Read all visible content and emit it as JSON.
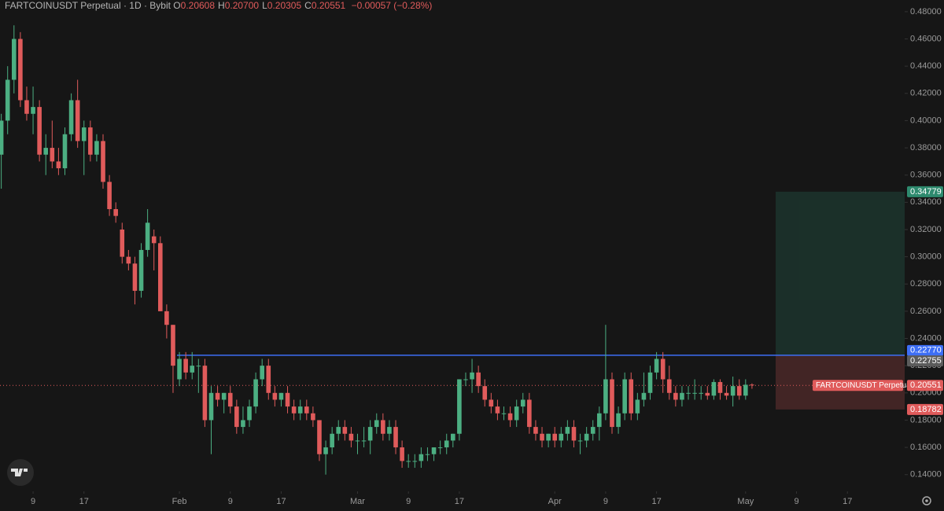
{
  "chart_data": {
    "type": "candlestick",
    "title": "FARTCOINUSDT Perpetual · 1D · Bybit",
    "ohlc_header": [
      {
        "label": "O",
        "value": "0.20608"
      },
      {
        "label": "H",
        "value": "0.20700"
      },
      {
        "label": "L",
        "value": "0.20305"
      },
      {
        "label": "C",
        "value": "0.20551"
      }
    ],
    "change": "−0.00057 (−0.28%)",
    "series_name": "FARTCOINUSDT Perpetual",
    "up_color": "#4caf82",
    "down_color": "#e05b5b",
    "open": [
      0.375,
      0.4,
      0.43,
      0.46,
      0.415,
      0.405,
      0.41,
      0.375,
      0.38,
      0.37,
      0.365,
      0.39,
      0.415,
      0.385,
      0.395,
      0.375,
      0.385,
      0.355,
      0.335,
      0.32,
      0.3,
      0.295,
      0.275,
      0.305,
      0.315,
      0.31,
      0.26,
      0.25,
      0.21,
      0.225,
      0.215,
      0.22,
      0.22,
      0.18,
      0.2,
      0.195,
      0.2,
      0.19,
      0.175,
      0.18,
      0.19,
      0.21,
      0.22,
      0.2,
      0.195,
      0.2,
      0.19,
      0.185,
      0.19,
      0.185,
      0.18,
      0.155,
      0.16,
      0.17,
      0.175,
      0.17,
      0.165,
      0.165,
      0.165,
      0.175,
      0.18,
      0.17,
      0.175,
      0.16,
      0.15,
      0.15,
      0.15,
      0.155,
      0.155,
      0.16,
      0.16,
      0.165,
      0.17,
      0.21,
      0.21,
      0.215,
      0.205,
      0.195,
      0.19,
      0.185,
      0.185,
      0.18,
      0.19,
      0.195,
      0.175,
      0.17,
      0.165,
      0.17,
      0.165,
      0.17,
      0.175,
      0.165,
      0.165,
      0.17,
      0.175,
      0.185,
      0.21,
      0.175,
      0.185,
      0.21,
      0.185,
      0.195,
      0.2,
      0.215,
      0.225,
      0.21,
      0.2,
      0.195,
      0.2,
      0.2,
      0.2,
      0.2,
      0.198,
      0.208,
      0.2,
      0.198,
      0.205,
      0.198,
      0.20608
    ],
    "high": [
      0.405,
      0.44,
      0.47,
      0.465,
      0.425,
      0.425,
      0.415,
      0.39,
      0.4,
      0.38,
      0.395,
      0.42,
      0.43,
      0.4,
      0.4,
      0.39,
      0.39,
      0.36,
      0.34,
      0.325,
      0.305,
      0.3,
      0.31,
      0.335,
      0.32,
      0.315,
      0.265,
      0.25,
      0.23,
      0.23,
      0.23,
      0.225,
      0.225,
      0.205,
      0.205,
      0.2,
      0.205,
      0.195,
      0.19,
      0.195,
      0.215,
      0.225,
      0.225,
      0.205,
      0.2,
      0.205,
      0.195,
      0.195,
      0.195,
      0.19,
      0.18,
      0.165,
      0.175,
      0.18,
      0.18,
      0.175,
      0.17,
      0.175,
      0.18,
      0.185,
      0.185,
      0.18,
      0.18,
      0.165,
      0.155,
      0.155,
      0.16,
      0.16,
      0.16,
      0.165,
      0.17,
      0.17,
      0.21,
      0.215,
      0.225,
      0.22,
      0.21,
      0.2,
      0.195,
      0.19,
      0.19,
      0.195,
      0.2,
      0.2,
      0.18,
      0.175,
      0.17,
      0.175,
      0.175,
      0.18,
      0.18,
      0.17,
      0.175,
      0.18,
      0.19,
      0.25,
      0.215,
      0.19,
      0.215,
      0.215,
      0.2,
      0.215,
      0.22,
      0.23,
      0.23,
      0.22,
      0.205,
      0.205,
      0.205,
      0.21,
      0.205,
      0.205,
      0.21,
      0.21,
      0.205,
      0.212,
      0.21,
      0.21,
      0.207
    ],
    "low": [
      0.35,
      0.39,
      0.42,
      0.41,
      0.4,
      0.39,
      0.37,
      0.36,
      0.365,
      0.36,
      0.36,
      0.385,
      0.38,
      0.36,
      0.37,
      0.37,
      0.35,
      0.33,
      0.325,
      0.295,
      0.29,
      0.265,
      0.27,
      0.3,
      0.29,
      0.26,
      0.24,
      0.2,
      0.205,
      0.21,
      0.21,
      0.2,
      0.175,
      0.155,
      0.19,
      0.185,
      0.185,
      0.17,
      0.17,
      0.175,
      0.185,
      0.205,
      0.195,
      0.19,
      0.19,
      0.185,
      0.18,
      0.18,
      0.18,
      0.175,
      0.15,
      0.14,
      0.155,
      0.165,
      0.165,
      0.16,
      0.155,
      0.16,
      0.155,
      0.17,
      0.165,
      0.165,
      0.155,
      0.145,
      0.145,
      0.145,
      0.145,
      0.15,
      0.15,
      0.155,
      0.155,
      0.16,
      0.165,
      0.205,
      0.2,
      0.2,
      0.19,
      0.185,
      0.18,
      0.18,
      0.175,
      0.175,
      0.185,
      0.17,
      0.165,
      0.16,
      0.16,
      0.16,
      0.16,
      0.165,
      0.16,
      0.155,
      0.16,
      0.165,
      0.165,
      0.18,
      0.17,
      0.17,
      0.18,
      0.18,
      0.18,
      0.19,
      0.195,
      0.21,
      0.2,
      0.195,
      0.19,
      0.19,
      0.195,
      0.195,
      0.195,
      0.195,
      0.195,
      0.195,
      0.195,
      0.19,
      0.195,
      0.195,
      0.20305
    ],
    "close": [
      0.4,
      0.43,
      0.46,
      0.415,
      0.405,
      0.41,
      0.375,
      0.38,
      0.37,
      0.365,
      0.39,
      0.415,
      0.385,
      0.395,
      0.375,
      0.385,
      0.355,
      0.335,
      0.33,
      0.3,
      0.295,
      0.275,
      0.305,
      0.325,
      0.31,
      0.26,
      0.25,
      0.22,
      0.225,
      0.215,
      0.22,
      0.22,
      0.18,
      0.2,
      0.195,
      0.2,
      0.19,
      0.175,
      0.18,
      0.19,
      0.21,
      0.22,
      0.2,
      0.195,
      0.2,
      0.19,
      0.185,
      0.19,
      0.185,
      0.18,
      0.155,
      0.16,
      0.17,
      0.175,
      0.17,
      0.165,
      0.165,
      0.165,
      0.175,
      0.18,
      0.17,
      0.175,
      0.16,
      0.15,
      0.15,
      0.15,
      0.155,
      0.155,
      0.16,
      0.16,
      0.165,
      0.17,
      0.21,
      0.21,
      0.215,
      0.205,
      0.195,
      0.19,
      0.185,
      0.185,
      0.18,
      0.19,
      0.195,
      0.175,
      0.17,
      0.165,
      0.17,
      0.165,
      0.17,
      0.175,
      0.165,
      0.165,
      0.17,
      0.175,
      0.185,
      0.21,
      0.175,
      0.185,
      0.21,
      0.185,
      0.195,
      0.2,
      0.215,
      0.225,
      0.21,
      0.2,
      0.195,
      0.2,
      0.2,
      0.2,
      0.2,
      0.198,
      0.208,
      0.2,
      0.198,
      0.205,
      0.198,
      0.206,
      0.20551
    ],
    "xlim": [
      -0.2,
      142
    ],
    "xticks": [
      {
        "value": 5,
        "label": "9"
      },
      {
        "value": 13,
        "label": "17"
      },
      {
        "value": 28,
        "label": "Feb"
      },
      {
        "value": 36,
        "label": "9"
      },
      {
        "value": 44,
        "label": "17"
      },
      {
        "value": 56,
        "label": "Mar"
      },
      {
        "value": 64,
        "label": "9"
      },
      {
        "value": 72,
        "label": "17"
      },
      {
        "value": 87,
        "label": "Apr"
      },
      {
        "value": 95,
        "label": "9"
      },
      {
        "value": 103,
        "label": "17"
      },
      {
        "value": 117,
        "label": "May"
      },
      {
        "value": 125,
        "label": "9"
      },
      {
        "value": 133,
        "label": "17"
      }
    ],
    "ylim": [
      0.1277,
      0.4886
    ],
    "yticks": [
      {
        "value": 0.14,
        "label": "0.14000"
      },
      {
        "value": 0.16,
        "label": "0.16000"
      },
      {
        "value": 0.18,
        "label": "0.18000"
      },
      {
        "value": 0.2,
        "label": "0.20000"
      },
      {
        "value": 0.22,
        "label": "0.22000"
      },
      {
        "value": 0.24,
        "label": "0.24000"
      },
      {
        "value": 0.26,
        "label": "0.26000"
      },
      {
        "value": 0.28,
        "label": "0.28000"
      },
      {
        "value": 0.3,
        "label": "0.30000"
      },
      {
        "value": 0.32,
        "label": "0.32000"
      },
      {
        "value": 0.34,
        "label": "0.34000"
      },
      {
        "value": 0.36,
        "label": "0.36000"
      },
      {
        "value": 0.38,
        "label": "0.38000"
      },
      {
        "value": 0.4,
        "label": "0.40000"
      },
      {
        "value": 0.42,
        "label": "0.42000"
      },
      {
        "value": 0.44,
        "label": "0.44000"
      },
      {
        "value": 0.46,
        "label": "0.46000"
      },
      {
        "value": 0.48,
        "label": "0.48000"
      }
    ],
    "horizontal_line": {
      "value": 0.2277,
      "label": "0.22770",
      "color": "#3d6ef5"
    },
    "last_price": {
      "value": 0.20551,
      "label": "0.20551",
      "color": "#e05b5b"
    },
    "position": {
      "target": {
        "value": 0.34779,
        "label": "0.34779",
        "color": "#2e8a6e"
      },
      "entry": {
        "value": 0.22755,
        "label": "0.22755",
        "color": "#5c5c5c"
      },
      "stop": {
        "value": 0.18782,
        "label": "0.18782",
        "color": "#e05b5b"
      }
    }
  }
}
